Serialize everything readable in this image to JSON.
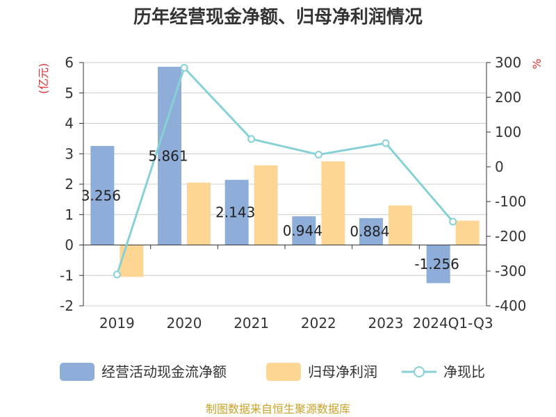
{
  "chart_data": {
    "type": "bar",
    "title": "历年经营现金净额、归母净利润情况",
    "categories": [
      "2019",
      "2020",
      "2021",
      "2022",
      "2023",
      "2024Q1-Q3"
    ],
    "series": [
      {
        "name": "经营活动现金流净额",
        "type": "bar",
        "axis": "left",
        "color": "#8eadd9",
        "values": [
          3.256,
          5.861,
          2.143,
          0.944,
          0.884,
          -1.256
        ],
        "labels": [
          "3.256",
          "5.861",
          "2.143",
          "0.944",
          "0.884",
          "-1.256"
        ]
      },
      {
        "name": "归母净利润",
        "type": "bar",
        "axis": "left",
        "color": "#fdd694",
        "values": [
          -1.05,
          2.05,
          2.62,
          2.75,
          1.3,
          0.8
        ]
      },
      {
        "name": "净现比",
        "type": "line",
        "axis": "right",
        "color": "#86d1d6",
        "values": [
          -310,
          285,
          80,
          35,
          68,
          -158
        ]
      }
    ],
    "left_axis": {
      "label": "(亿元)",
      "ylim": [
        -2,
        6
      ],
      "ticks": [
        -2,
        -1,
        0,
        1,
        2,
        3,
        4,
        5,
        6
      ]
    },
    "right_axis": {
      "label": "%",
      "ylim": [
        -400,
        300
      ],
      "ticks": [
        -400,
        -300,
        -200,
        -100,
        0,
        100,
        200,
        300
      ]
    },
    "grid": true,
    "legend": "bottom",
    "source": "制图数据来自恒生聚源数据库"
  }
}
